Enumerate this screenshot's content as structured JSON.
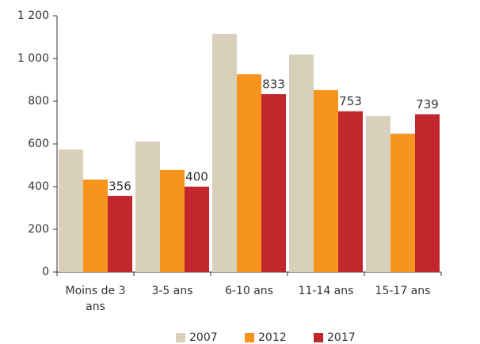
{
  "chart_data": {
    "type": "bar",
    "categories": [
      "Moins de 3 ans",
      "3-5 ans",
      "6-10 ans",
      "11-14 ans",
      "15-17 ans"
    ],
    "series": [
      {
        "name": "2007",
        "color": "#d9d0bc",
        "values": [
          574,
          611,
          1115,
          1019,
          730
        ]
      },
      {
        "name": "2012",
        "color": "#f7941d",
        "values": [
          433,
          478,
          926,
          852,
          648
        ]
      },
      {
        "name": "2017",
        "color": "#c1272d",
        "values": [
          356,
          400,
          833,
          753,
          739
        ],
        "data_labels": true
      }
    ],
    "ylim": [
      0,
      1200
    ],
    "yticks": [
      0,
      200,
      400,
      600,
      800,
      {
        "value": 1000,
        "label": "1 000"
      },
      {
        "value": 1200,
        "label": "1 200"
      }
    ],
    "grid": false,
    "legend": "bottom"
  }
}
